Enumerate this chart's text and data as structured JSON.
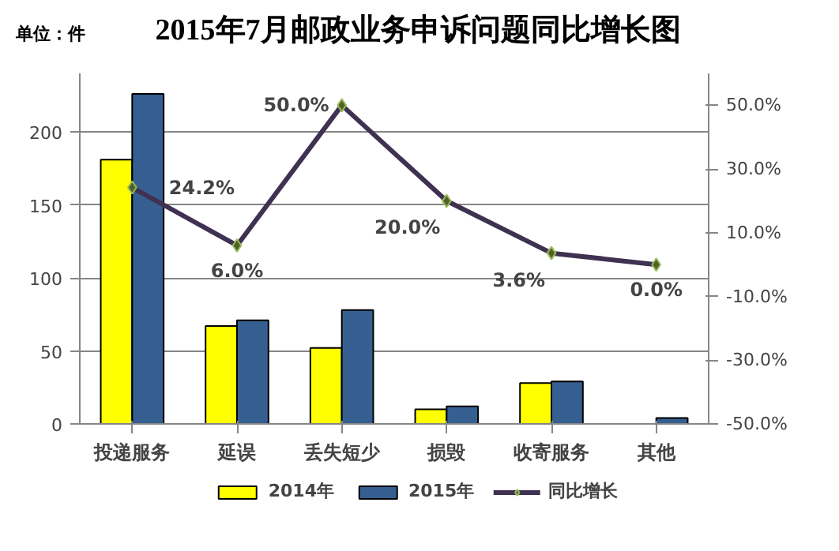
{
  "chart_data": {
    "type": "bar",
    "title": "2015年7月邮政业务申诉问题同比增长图",
    "annotations": [
      "单位：件"
    ],
    "categories": [
      "投递服务",
      "延误",
      "丢失短少",
      "损毁",
      "收寄服务",
      "其他"
    ],
    "series": [
      {
        "name": "2014年",
        "color": "#ffff00",
        "values": [
          181,
          67,
          52,
          10,
          28,
          0
        ]
      },
      {
        "name": "2015年",
        "color": "#365f91",
        "values": [
          226,
          71,
          78,
          12,
          29,
          4
        ]
      },
      {
        "name": "同比增长",
        "type": "line",
        "axis": "y2",
        "color": "#3f3151",
        "marker": "diamond",
        "values": [
          24.2,
          6.0,
          50.0,
          20.0,
          3.6,
          0.0
        ],
        "value_labels": [
          "24.2%",
          "6.0%",
          "50.0%",
          "20.0%",
          "3.6%",
          "0.0%"
        ]
      }
    ],
    "ylim": [
      0,
      240
    ],
    "yticks": [
      0,
      50,
      100,
      150,
      200
    ],
    "y2lim": [
      -50,
      60
    ],
    "y2ticks": [
      {
        "value": -50,
        "label": "-50.0%"
      },
      {
        "value": -30,
        "label": "-30.0%"
      },
      {
        "value": -10,
        "label": "-10.0%"
      },
      {
        "value": 10,
        "label": "10.0%"
      },
      {
        "value": 30,
        "label": "30.0%"
      },
      {
        "value": 50,
        "label": "50.0%"
      }
    ],
    "grid": "y",
    "legend": "bottom"
  }
}
